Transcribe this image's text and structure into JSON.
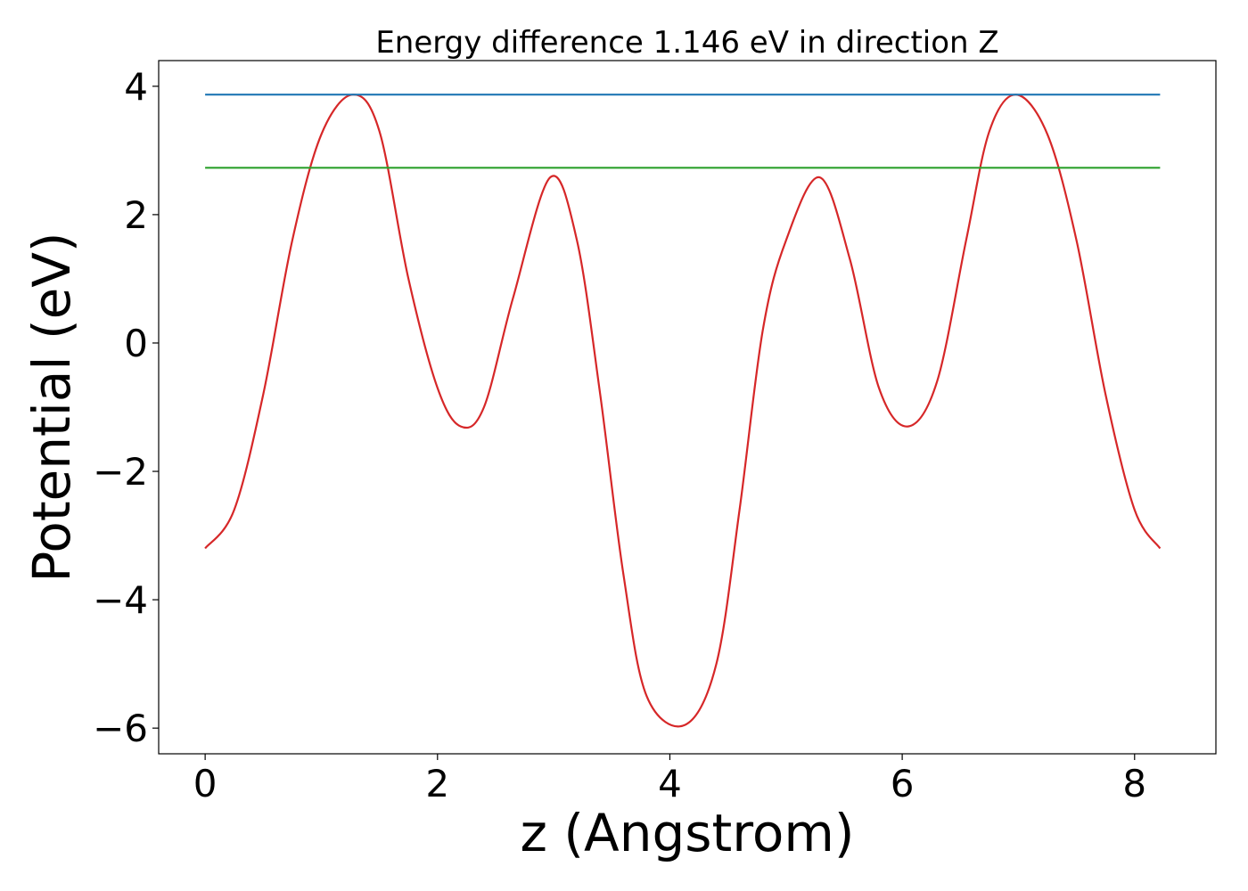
{
  "chart_data": {
    "type": "line",
    "title": "Energy difference 1.146 eV in direction Z",
    "xlabel": "z (Angstrom)",
    "ylabel": "Potential (eV)",
    "xlim": [
      -0.4,
      8.7
    ],
    "ylim": [
      -6.4,
      4.4
    ],
    "x_ticks": [
      0,
      2,
      4,
      6,
      8
    ],
    "x_tick_labels": [
      "0",
      "2",
      "4",
      "6",
      "8"
    ],
    "y_ticks": [
      4,
      2,
      0,
      -2,
      -4,
      -6
    ],
    "y_tick_labels": [
      "4",
      "2",
      "0",
      "−2",
      "−4",
      "−6"
    ],
    "grid": false,
    "series": [
      {
        "color": "#d62728",
        "x": [
          0.0,
          0.25,
          0.5,
          0.75,
          1.0,
          1.27,
          1.5,
          1.75,
          2.0,
          2.2,
          2.4,
          2.65,
          2.97,
          3.2,
          3.4,
          3.6,
          3.8,
          4.13,
          4.4,
          4.6,
          4.8,
          5.0,
          5.29,
          5.55,
          5.8,
          6.05,
          6.3,
          6.55,
          6.75,
          6.98,
          7.25,
          7.5,
          7.75,
          8.0,
          8.22
        ],
        "y": [
          -3.2,
          -2.6,
          -0.8,
          1.6,
          3.25,
          3.87,
          3.3,
          1.0,
          -0.7,
          -1.3,
          -1.0,
          0.7,
          2.58,
          1.6,
          -0.8,
          -3.6,
          -5.5,
          -5.95,
          -5.0,
          -2.6,
          0.2,
          1.6,
          2.58,
          1.3,
          -0.7,
          -1.3,
          -0.6,
          1.6,
          3.3,
          3.87,
          3.25,
          1.6,
          -0.8,
          -2.6,
          -3.2
        ]
      },
      {
        "color": "#1f77b4",
        "x": [
          0.0,
          8.22
        ],
        "y": [
          3.87,
          3.87
        ]
      },
      {
        "color": "#2ca02c",
        "x": [
          0.0,
          8.22
        ],
        "y": [
          2.73,
          2.73
        ]
      }
    ]
  }
}
